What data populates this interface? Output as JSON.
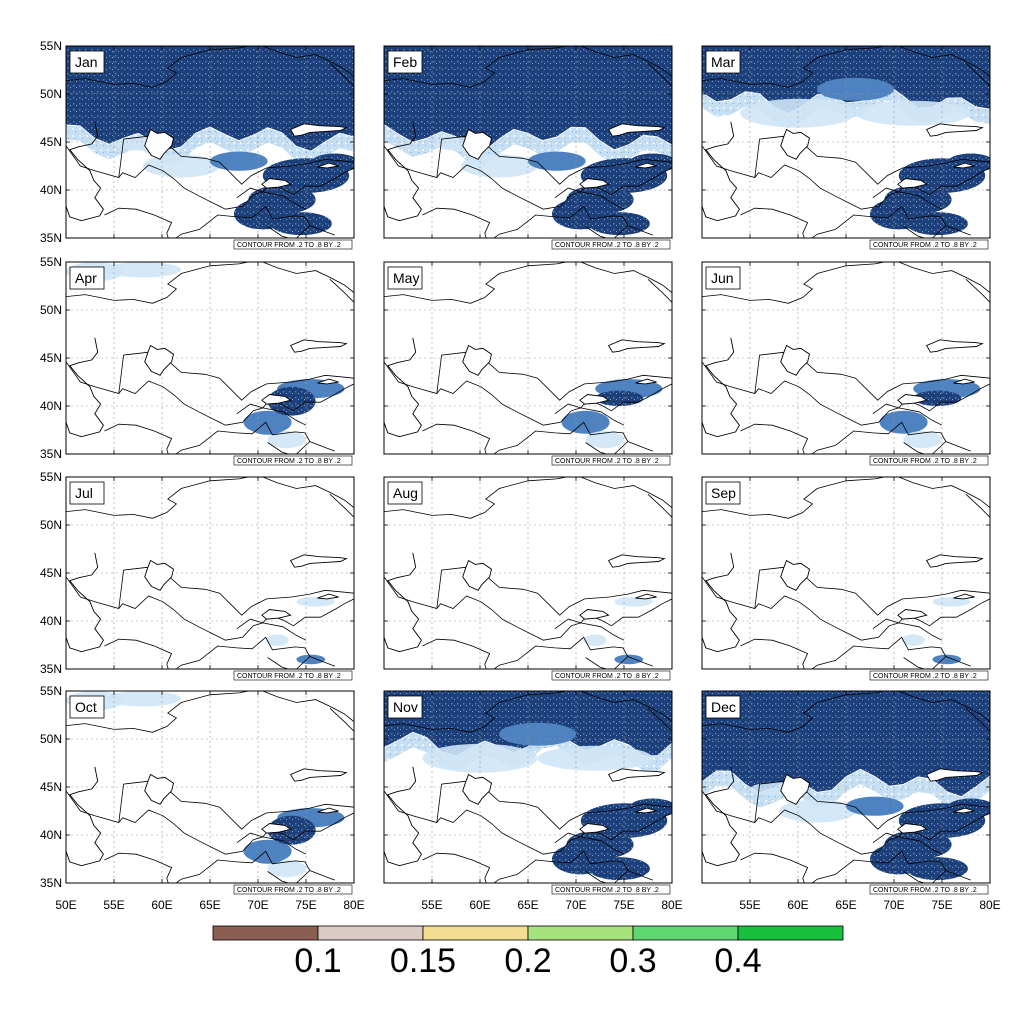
{
  "figure": {
    "panels": [
      {
        "month": "Jan",
        "cover": "heavy-north"
      },
      {
        "month": "Feb",
        "cover": "heavy-north"
      },
      {
        "month": "Mar",
        "cover": "partial-north"
      },
      {
        "month": "Apr",
        "cover": "light"
      },
      {
        "month": "May",
        "cover": "mountain-light"
      },
      {
        "month": "Jun",
        "cover": "mountain-light"
      },
      {
        "month": "Jul",
        "cover": "minimal"
      },
      {
        "month": "Aug",
        "cover": "minimal"
      },
      {
        "month": "Sep",
        "cover": "minimal"
      },
      {
        "month": "Oct",
        "cover": "light"
      },
      {
        "month": "Nov",
        "cover": "partial-north"
      },
      {
        "month": "Dec",
        "cover": "heavy-north"
      }
    ],
    "contour_info": "CONTOUR FROM .2 TO .8 BY .2",
    "lat_ticks": [
      "55N",
      "50N",
      "45N",
      "40N",
      "35N"
    ],
    "lon_ticks": [
      "50E",
      "55E",
      "60E",
      "65E",
      "70E",
      "75E",
      "80E"
    ],
    "colors": {
      "snow_dark": "#1d3f7a",
      "snow_mid": "#4f82c0",
      "snow_light": "#cfe5f6",
      "coast": "#000000",
      "grid": "#9a9a9a"
    }
  },
  "colorbar": {
    "colors": [
      "#8b5e52",
      "#d8ccc5",
      "#f2de90",
      "#a8e27c",
      "#5fd872",
      "#19c03e"
    ],
    "labels": [
      "0.1",
      "0.15",
      "0.2",
      "0.3",
      "0.4"
    ]
  }
}
